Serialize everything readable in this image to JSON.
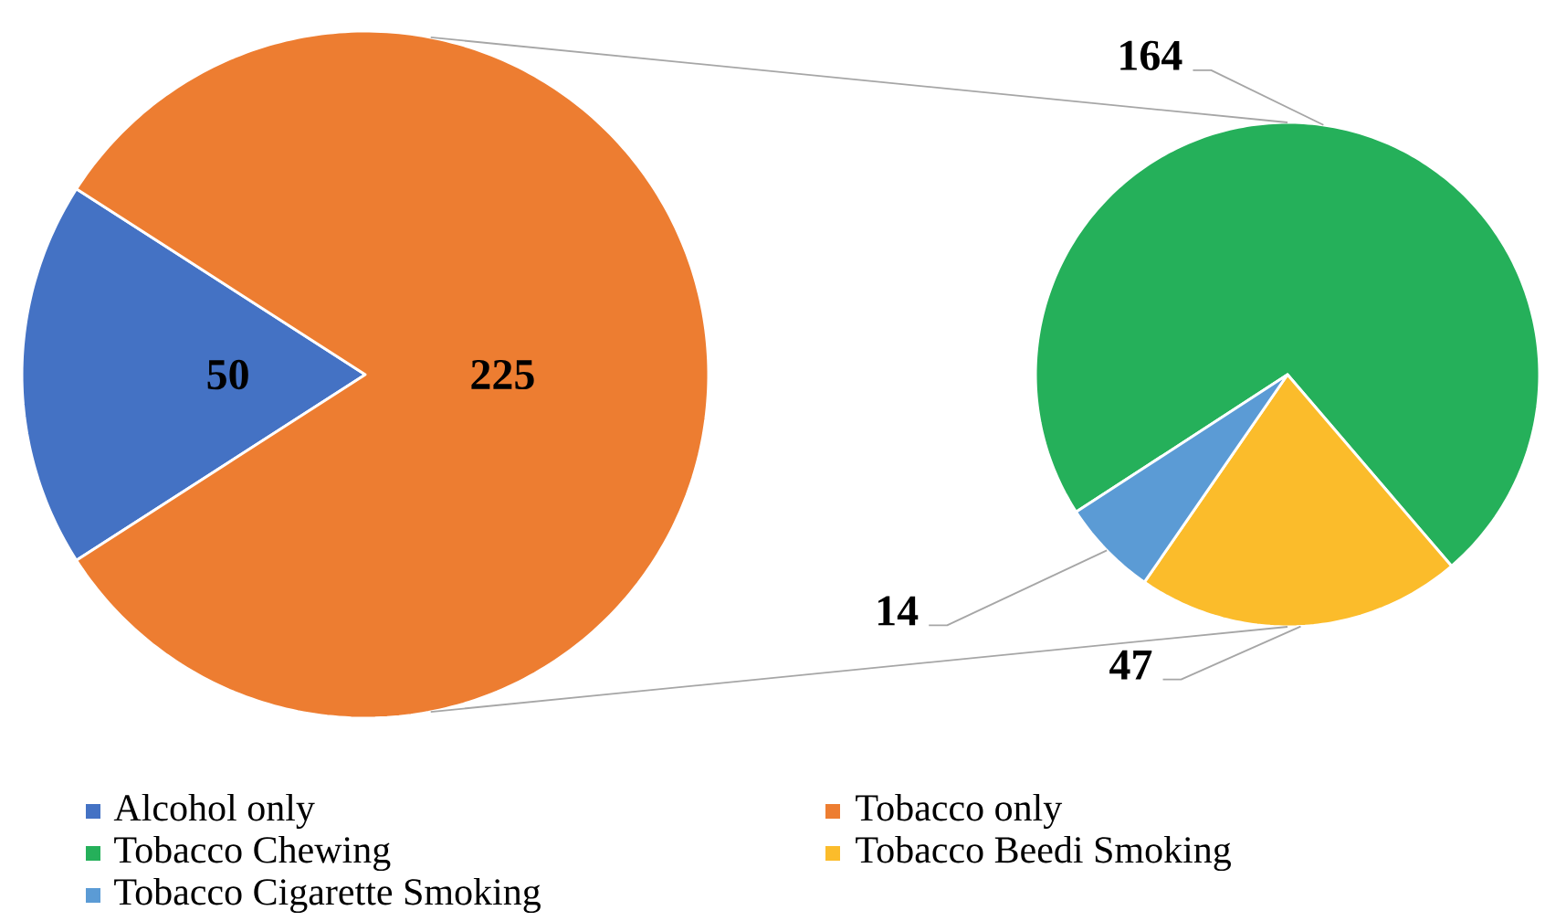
{
  "chart_data": [
    {
      "type": "pie",
      "categories": [
        "Alcohol only",
        "Tobacco only"
      ],
      "values": [
        50,
        225
      ],
      "colors": [
        "#4472c4",
        "#ed7d31"
      ],
      "data_labels": true,
      "legend": "bottom"
    },
    {
      "type": "pie",
      "categories": [
        "Tobacco Chewing",
        "Tobacco Beedi Smoking",
        "Tobacco Cigarette Smoking"
      ],
      "values": [
        164,
        47,
        14
      ],
      "colors": [
        "#25b05a",
        "#fbbc2b",
        "#5b9bd5"
      ],
      "data_labels": true,
      "legend": "bottom"
    }
  ]
}
